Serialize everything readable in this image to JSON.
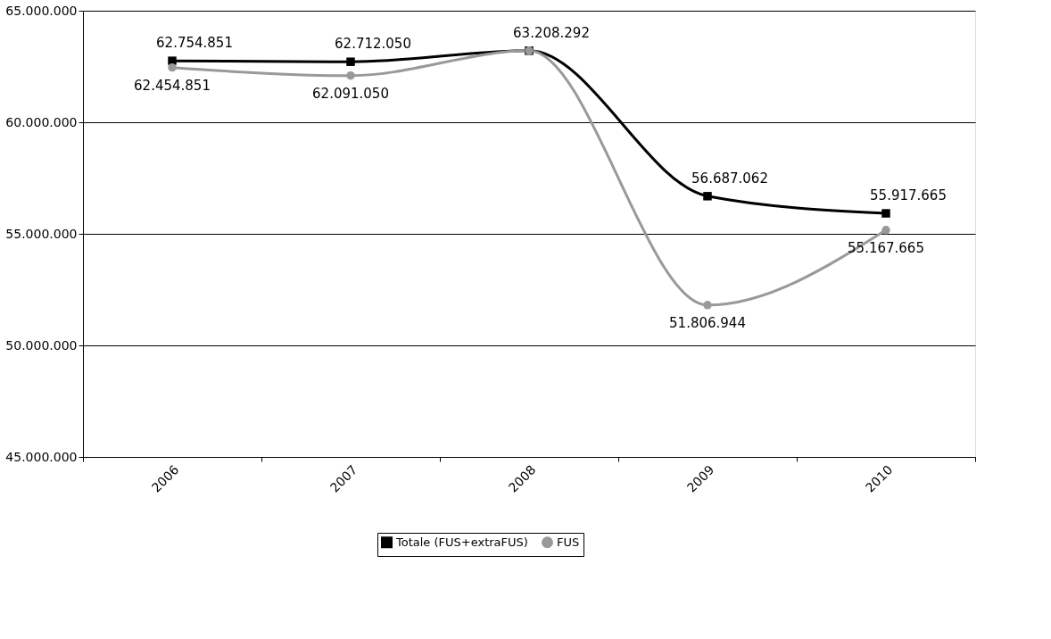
{
  "chart_data": {
    "type": "line",
    "categories": [
      "2006",
      "2007",
      "2008",
      "2009",
      "2010"
    ],
    "series": [
      {
        "name": "Totale (FUS+extraFUS)",
        "color": "#000000",
        "marker": "square",
        "values": [
          62754851,
          62712050,
          63208292,
          56687062,
          55917665
        ],
        "value_labels": [
          "62.754.851",
          "62.712.050",
          "63.208.292",
          "56.687.062",
          "55.917.665"
        ]
      },
      {
        "name": "FUS",
        "color": "#999999",
        "marker": "circle",
        "values": [
          62454851,
          62091050,
          63208292,
          51806944,
          55167665
        ],
        "value_labels": [
          "62.454.851",
          "62.091.050",
          null,
          "51.806.944",
          "55.167.665"
        ]
      }
    ],
    "ylim": [
      45000000,
      65000000
    ],
    "yticks": [
      {
        "value": 45000000,
        "label": "45.000.000"
      },
      {
        "value": 50000000,
        "label": "50.000.000"
      },
      {
        "value": 55000000,
        "label": "55.000.000"
      },
      {
        "value": 60000000,
        "label": "60.000.000"
      },
      {
        "value": 65000000,
        "label": "65.000.000"
      }
    ],
    "grid": "y",
    "legend": "bottom",
    "line_style": "solid"
  }
}
